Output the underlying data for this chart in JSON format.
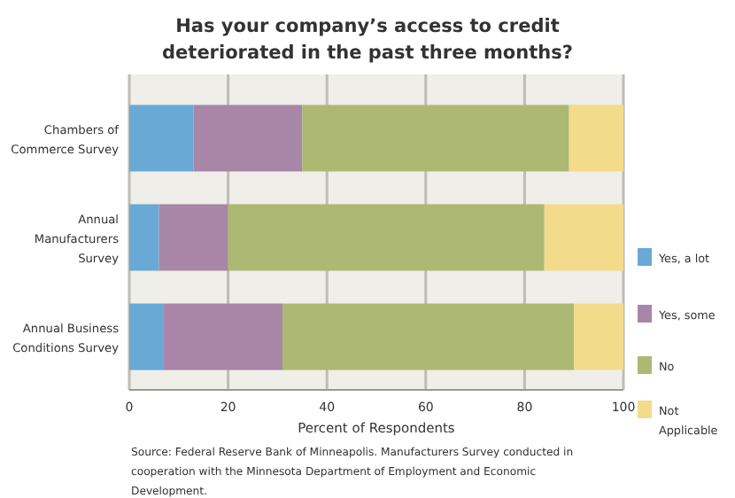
{
  "chart_data": {
    "type": "bar",
    "orientation": "horizontal",
    "stacked": true,
    "title": "Has your company’s access to credit deteriorated in the past three months?",
    "xlabel": "Percent of Respondents",
    "categories": [
      "Chambers of Commerce Survey",
      "Annual Manufacturers Survey",
      "Annual Business Conditions Survey"
    ],
    "series": [
      {
        "name": "Yes, a lot",
        "color": "#68a9d6",
        "values": [
          13,
          6,
          7
        ]
      },
      {
        "name": "Yes, some",
        "color": "#a886a8",
        "values": [
          22,
          14,
          24
        ]
      },
      {
        "name": "No",
        "color": "#adb872",
        "values": [
          54,
          64,
          59
        ]
      },
      {
        "name": "Not Applicable",
        "color": "#f3db8c",
        "values": [
          11,
          16,
          10
        ]
      }
    ],
    "xlim": [
      0,
      100
    ],
    "xticks": [
      0,
      20,
      40,
      60,
      80,
      100
    ],
    "grid": "x",
    "legend": "right",
    "annotations": [
      "Source: Federal Reserve Bank of Minneapolis. Manufacturers Survey conducted in cooperation with the Minnesota Department of Employment and Economic Development."
    ]
  }
}
